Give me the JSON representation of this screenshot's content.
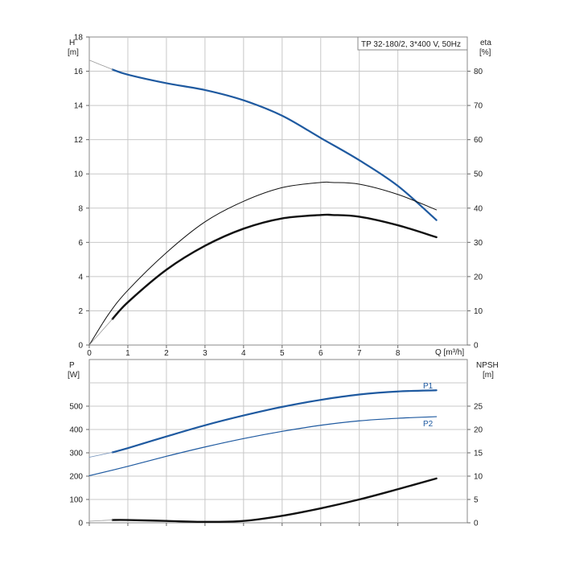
{
  "chart_data": [
    {
      "type": "line",
      "title": "TP 32-180/2, 3*400 V, 50Hz",
      "xlabel": "Q [m³/h]",
      "ylabel_left_name": "H",
      "ylabel_left_unit": "[m]",
      "ylabel_right_name": "eta",
      "ylabel_right_unit": "[%]",
      "xlim": [
        0,
        9.8
      ],
      "ylim_left": [
        0,
        18
      ],
      "ylim_right": [
        0,
        90
      ],
      "x_ticks": [
        "0",
        "1",
        "2",
        "3",
        "4",
        "5",
        "6",
        "7",
        "8"
      ],
      "y_left_ticks": [
        "0",
        "2",
        "4",
        "6",
        "8",
        "10",
        "12",
        "14",
        "16",
        "18"
      ],
      "y_right_ticks": [
        "0",
        "10",
        "20",
        "30",
        "40",
        "50",
        "60",
        "70",
        "80"
      ],
      "series": [
        {
          "axis": "left",
          "color": "#1f5aa0",
          "width": 2.2,
          "dash": "",
          "x": [
            0.6,
            1,
            2,
            3,
            4,
            5,
            6,
            7,
            8,
            9
          ],
          "y": [
            16.1,
            15.8,
            15.3,
            14.9,
            14.3,
            13.4,
            12.1,
            10.8,
            9.3,
            7.3
          ]
        },
        {
          "axis": "left",
          "color": "#9a9a9a",
          "width": 0.8,
          "dash": "",
          "x": [
            0,
            0.6
          ],
          "y": [
            16.65,
            16.1
          ]
        },
        {
          "axis": "right",
          "color": "#111111",
          "width": 1.0,
          "dash": "",
          "x": [
            0,
            0.5,
            1,
            2,
            3,
            4,
            5,
            6,
            6.3,
            7,
            8,
            9
          ],
          "y": [
            0,
            9,
            16,
            27,
            36,
            42,
            46,
            47.5,
            47.5,
            47,
            44,
            39.5
          ]
        },
        {
          "axis": "right",
          "color": "#111111",
          "width": 2.4,
          "dash": "",
          "x": [
            0.6,
            1,
            2,
            3,
            4,
            5,
            6,
            6.3,
            7,
            8,
            9
          ],
          "y": [
            7.6,
            12.5,
            22,
            29,
            34,
            37,
            38,
            38,
            37.5,
            35,
            31.5
          ]
        },
        {
          "axis": "right",
          "color": "#9a9a9a",
          "width": 0.8,
          "dash": "",
          "x": [
            0,
            0.6
          ],
          "y": [
            0,
            7.6
          ]
        }
      ]
    },
    {
      "type": "line",
      "xlim": [
        0,
        9.8
      ],
      "ylabel_left_name": "P",
      "ylabel_left_unit": "[W]",
      "ylabel_right_name": "NPSH",
      "ylabel_right_unit": "[m]",
      "ylim_left": [
        0,
        700
      ],
      "ylim_right": [
        0,
        35
      ],
      "y_left_ticks": [
        "0",
        "100",
        "200",
        "300",
        "400",
        "500"
      ],
      "y_right_ticks": [
        "0",
        "5",
        "10",
        "15",
        "20",
        "25"
      ],
      "series": [
        {
          "name": "P1",
          "axis": "left",
          "color": "#1f5aa0",
          "width": 2.2,
          "dash": "",
          "x": [
            0.6,
            1,
            2,
            3,
            4,
            5,
            6,
            7,
            8,
            9
          ],
          "y": [
            302,
            320,
            370,
            418,
            460,
            497,
            527,
            550,
            563,
            568
          ]
        },
        {
          "axis": "left",
          "color": "#6f8fb8",
          "width": 0.8,
          "dash": "",
          "x": [
            0,
            0.6
          ],
          "y": [
            281,
            302
          ]
        },
        {
          "name": "P2",
          "axis": "left",
          "color": "#1f5aa0",
          "width": 1.2,
          "dash": "",
          "x": [
            0,
            1,
            2,
            3,
            4,
            5,
            6,
            7,
            8,
            9
          ],
          "y": [
            202,
            242,
            285,
            325,
            361,
            392,
            418,
            437,
            448,
            455
          ]
        },
        {
          "axis": "right",
          "color": "#111111",
          "width": 2.4,
          "dash": "",
          "x": [
            0.6,
            1,
            2,
            3,
            4,
            5,
            6,
            7,
            8,
            9
          ],
          "y": [
            0.6,
            0.6,
            0.4,
            0.2,
            0.4,
            1.5,
            3.1,
            5.0,
            7.2,
            9.5
          ]
        },
        {
          "axis": "right",
          "color": "#9a9a9a",
          "width": 0.8,
          "dash": "",
          "x": [
            0,
            0.6
          ],
          "y": [
            0.35,
            0.6
          ]
        }
      ]
    }
  ]
}
